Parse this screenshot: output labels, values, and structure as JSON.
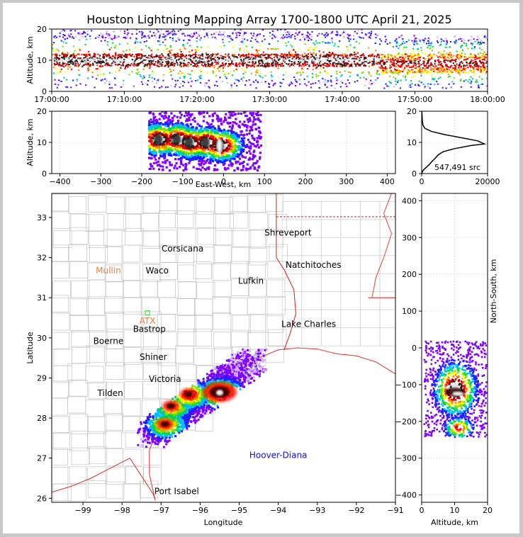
{
  "chart_data": [
    {
      "panel": "time-altitude",
      "type": "heatmap",
      "title": "Houston Lightning Mapping Array 1700-1800 UTC April 21, 2025",
      "ylabel": "Altitude, km",
      "xlim": [
        "17:00:00",
        "18:00:00"
      ],
      "ylim": [
        0,
        20
      ],
      "x_ticks": [
        "17:00:00",
        "17:10:00",
        "17:20:00",
        "17:30:00",
        "17:40:00",
        "17:50:00",
        "18:00:00"
      ],
      "y_ticks": [
        0,
        10,
        20
      ],
      "description_bands": [
        {
          "from_min": 0,
          "to_min": 45,
          "core_alt_km": [
            8,
            12
          ],
          "top_km": 18
        },
        {
          "from_min": 45,
          "to_min": 60,
          "core_alt_km": [
            6,
            12
          ],
          "top_km": 16
        }
      ]
    },
    {
      "panel": "east-west-altitude",
      "type": "heatmap",
      "xlabel": "East-West, km",
      "ylabel": "Altitude, km",
      "xlim": [
        -420,
        420
      ],
      "ylim": [
        0,
        20
      ],
      "x_ticks": [
        -400,
        -300,
        -200,
        -100,
        0,
        100,
        200,
        300,
        400
      ],
      "y_ticks": [
        0,
        10,
        20
      ],
      "density_peaks": [
        {
          "x_km": -160,
          "alt_km": 11
        },
        {
          "x_km": -115,
          "alt_km": 11
        },
        {
          "x_km": -85,
          "alt_km": 10
        },
        {
          "x_km": -45,
          "alt_km": 10
        },
        {
          "x_km": -10,
          "alt_km": 9
        }
      ]
    },
    {
      "panel": "altitude-histogram",
      "type": "line",
      "xlim": [
        0,
        20000
      ],
      "ylim": [
        0,
        20
      ],
      "x_ticks": [
        0,
        20000
      ],
      "y_ticks": [
        0,
        10,
        20
      ],
      "annotation": "547,491 src",
      "points": [
        [
          0,
          0
        ],
        [
          400,
          1
        ],
        [
          1400,
          2
        ],
        [
          2400,
          3
        ],
        [
          3200,
          4
        ],
        [
          4200,
          5
        ],
        [
          5000,
          6
        ],
        [
          6500,
          7
        ],
        [
          10000,
          8
        ],
        [
          15000,
          9
        ],
        [
          19000,
          9.5
        ],
        [
          17000,
          10.5
        ],
        [
          12000,
          11.5
        ],
        [
          7000,
          12.5
        ],
        [
          3000,
          13.5
        ],
        [
          1000,
          14.5
        ],
        [
          400,
          15.5
        ],
        [
          200,
          17
        ],
        [
          100,
          19
        ],
        [
          50,
          20
        ]
      ]
    },
    {
      "panel": "plan-view",
      "type": "heatmap",
      "xlabel": "Longitude",
      "ylabel": "Latitude",
      "xlim": [
        -99.8,
        -91
      ],
      "ylim": [
        25.9,
        33.6
      ],
      "x_ticks": [
        -99,
        -98,
        -97,
        -96,
        -95,
        -94,
        -93,
        -92,
        -91
      ],
      "y_ticks": [
        26,
        27,
        28,
        29,
        30,
        31,
        32,
        33
      ],
      "cities": [
        {
          "name": "Shreveport",
          "lon": -93.75,
          "lat": 32.55,
          "color": "#000000"
        },
        {
          "name": "Corsicana",
          "lon": -96.45,
          "lat": 32.15,
          "color": "#000000"
        },
        {
          "name": "Mullin",
          "lon": -98.35,
          "lat": 31.6,
          "color": "#f08040"
        },
        {
          "name": "Waco",
          "lon": -97.1,
          "lat": 31.6,
          "color": "#000000"
        },
        {
          "name": "Natchitoches",
          "lon": -93.1,
          "lat": 31.75,
          "color": "#000000"
        },
        {
          "name": "Lufkin",
          "lon": -94.7,
          "lat": 31.35,
          "color": "#000000"
        },
        {
          "name": "ATX",
          "lon": -97.35,
          "lat": 30.35,
          "color": "#f08040"
        },
        {
          "name": "Bastrop",
          "lon": -97.3,
          "lat": 30.15,
          "color": "#000000"
        },
        {
          "name": "Lake Charles",
          "lon": -93.22,
          "lat": 30.27,
          "color": "#000000"
        },
        {
          "name": "Boerne",
          "lon": -98.35,
          "lat": 29.85,
          "color": "#000000"
        },
        {
          "name": "Shiner",
          "lon": -97.2,
          "lat": 29.45,
          "color": "#000000"
        },
        {
          "name": "Victoria",
          "lon": -96.9,
          "lat": 28.9,
          "color": "#000000"
        },
        {
          "name": "Tilden",
          "lon": -98.3,
          "lat": 28.55,
          "color": "#000000"
        },
        {
          "name": "Hoover-Diana",
          "lon": -94.0,
          "lat": 27.0,
          "color": "#1010e0"
        },
        {
          "name": "Port Isabel",
          "lon": -96.6,
          "lat": 26.1,
          "color": "#000000"
        }
      ],
      "storm_cells": [
        {
          "lon": -95.5,
          "lat": 28.65,
          "intensity": "peak"
        },
        {
          "lon": -96.3,
          "lat": 28.6,
          "intensity": "high"
        },
        {
          "lon": -96.75,
          "lat": 28.3,
          "intensity": "medium"
        },
        {
          "lon": -96.9,
          "lat": 27.85,
          "intensity": "medium"
        }
      ]
    },
    {
      "panel": "north-south-altitude",
      "type": "heatmap",
      "xlabel": "Altitude, km",
      "ylabel": "North-South, km",
      "xlim": [
        0,
        20
      ],
      "ylim": [
        -420,
        420
      ],
      "x_ticks": [
        0,
        10,
        20
      ],
      "y_ticks": [
        -400,
        -300,
        -200,
        -100,
        0,
        100,
        200,
        300,
        400
      ]
    }
  ]
}
